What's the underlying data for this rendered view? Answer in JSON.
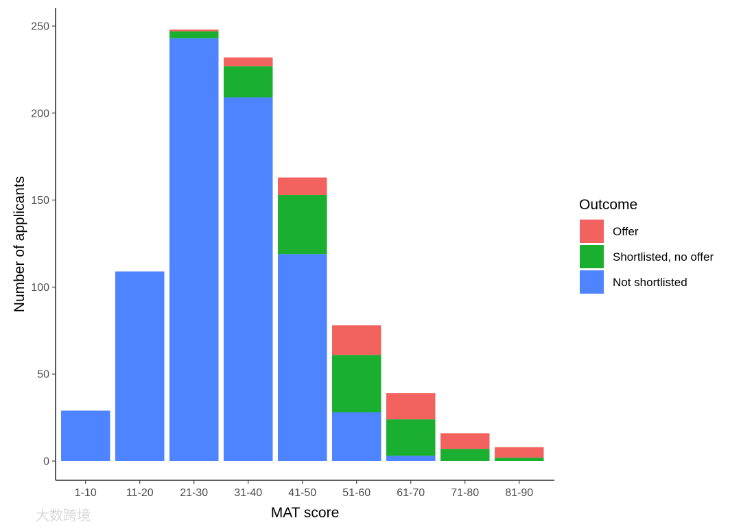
{
  "chart_data": {
    "type": "bar",
    "stacked": true,
    "xlabel": "MAT score",
    "ylabel": "Number of applicants",
    "categories": [
      "1-10",
      "11-20",
      "21-30",
      "31-40",
      "41-50",
      "51-60",
      "61-70",
      "71-80",
      "81-90"
    ],
    "ylim": [
      0,
      260
    ],
    "yticks": [
      0,
      50,
      100,
      150,
      200,
      250
    ],
    "grid": false,
    "legend": {
      "title": "Outcome",
      "position": "right"
    },
    "series": [
      {
        "name": "Not shortlisted",
        "color": "#4E84FF",
        "values": [
          29,
          109,
          243,
          209,
          119,
          28,
          3,
          0,
          0
        ]
      },
      {
        "name": "Shortlisted, no offer",
        "color": "#1AAF30",
        "values": [
          0,
          0,
          4,
          18,
          34,
          33,
          21,
          7,
          2
        ]
      },
      {
        "name": "Offer",
        "color": "#F2635F",
        "values": [
          0,
          0,
          1,
          5,
          10,
          17,
          15,
          9,
          6
        ]
      }
    ],
    "legend_order": [
      "Offer",
      "Shortlisted, no offer",
      "Not shortlisted"
    ]
  },
  "watermark": {
    "text": "大数跨境"
  }
}
